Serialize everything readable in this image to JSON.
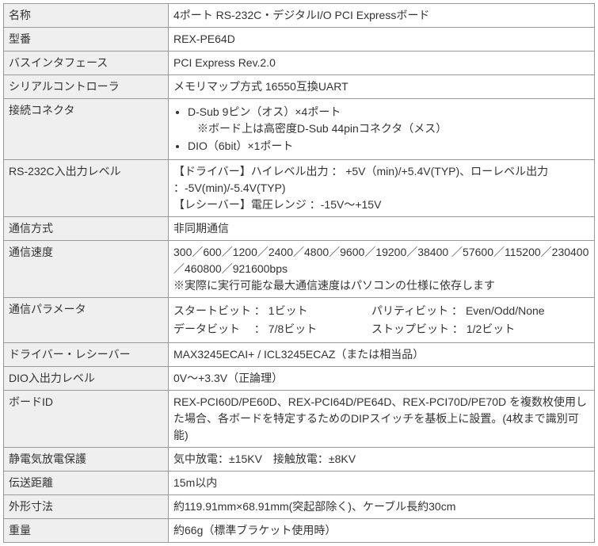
{
  "rows": [
    {
      "label": "名称",
      "value": "4ポート RS-232C・デジタルI/O PCI Expressボード"
    },
    {
      "label": "型番",
      "value": "REX-PE64D"
    },
    {
      "label": "バスインタフェース",
      "value": "PCI Express Rev.2.0"
    },
    {
      "label": "シリアルコントローラ",
      "value": "メモリマップ方式 16550互換UART"
    },
    {
      "label": "接続コネクタ",
      "type": "connectors",
      "bullets": [
        "D-Sub 9ピン（オス）×4ポート",
        "DIO（6bit）×1ポート"
      ],
      "sub_note": "※ボード上は高密度D-Sub 44pinコネクタ（メス）"
    },
    {
      "label": "RS-232C入出力レベル",
      "type": "multiline",
      "lines": [
        "【ドライバー】ハイレベル出力 ： +5V（min)/+5.4V(TYP)、ローレベル出力 ：-5V(min)/-5.4V(TYP)",
        "【レシーバー】電圧レンジ ：-15V～+15V"
      ]
    },
    {
      "label": "通信方式",
      "value": "非同期通信"
    },
    {
      "label": "通信速度",
      "type": "speed",
      "speeds": "300／600／1200／2400／4800／9600／19200／38400 ／57600／115200／230400／460800／921600bps",
      "speed_note": "※実際に実行可能な最大通信速度はパソコンの仕様に依存します"
    },
    {
      "label": "通信パラメータ",
      "type": "params",
      "p1": "スタートビット ： 1ビット",
      "p2": "パリティビット ： Even/Odd/None",
      "p3": "データビット 　： 7/8ビット",
      "p4": "ストップビット ： 1/2ビット"
    },
    {
      "label": "ドライバー・レシーバー",
      "value": "MAX3245ECAI+ / ICL3245ECAZ（または相当品）"
    },
    {
      "label": "DIO入出力レベル",
      "value": "0V～+3.3V（正論理）"
    },
    {
      "label": "ボードID",
      "value": "REX-PCI60D/PE60D、REX-PCI64D/PE64D、REX-PCI70D/PE70D を複数枚使用した場合、各ボードを特定するためのDIPスイッチを基板上に設置。(4枚まで識別可能)"
    },
    {
      "label": "静電気放電保護",
      "value": "気中放電：±15KV　接触放電：±8KV"
    },
    {
      "label": "伝送距離",
      "value": "15m以内"
    },
    {
      "label": "外形寸法",
      "value": "約119.91mm×68.91mm(突起部除く)、ケーブル長約30cm"
    },
    {
      "label": "重量",
      "value": "約66g（標準ブラケット使用時）"
    }
  ]
}
